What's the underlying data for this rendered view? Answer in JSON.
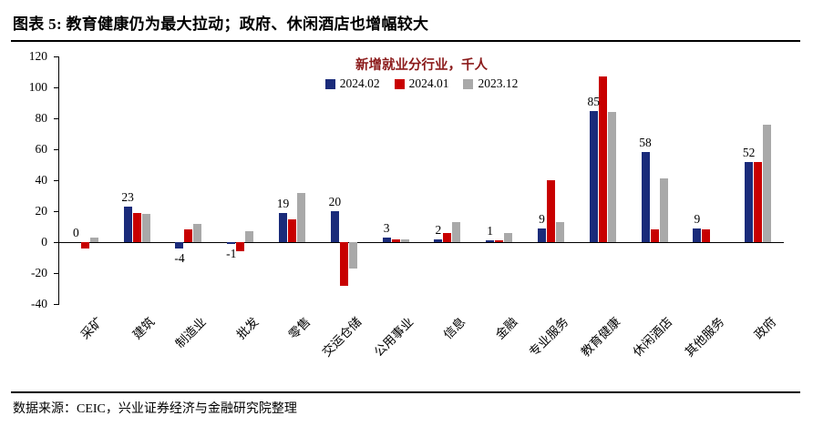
{
  "header": {
    "title": "图表 5: 教育健康仍为最大拉动；政府、休闲酒店也增幅较大"
  },
  "footer": {
    "source": "数据来源：CEIC，兴业证券经济与金融研究院整理"
  },
  "chart_data": {
    "type": "bar",
    "title": "新增就业分行业，千人",
    "title_color": "#8B1A1A",
    "categories": [
      "采矿",
      "建筑",
      "制造业",
      "批发",
      "零售",
      "交运仓储",
      "公用事业",
      "信息",
      "金融",
      "专业服务",
      "教育健康",
      "休闲酒店",
      "其他服务",
      "政府"
    ],
    "series": [
      {
        "name": "2024.02",
        "color": "#1A2B7A",
        "values": [
          0,
          23,
          -4,
          -1,
          19,
          20,
          3,
          2,
          1,
          9,
          85,
          58,
          9,
          52
        ]
      },
      {
        "name": "2024.01",
        "color": "#C80000",
        "values": [
          -4,
          19,
          8,
          -6,
          15,
          -28,
          2,
          6,
          1,
          40,
          107,
          8,
          8,
          52
        ]
      },
      {
        "name": "2023.12",
        "color": "#A9A9A9",
        "values": [
          3,
          18,
          12,
          7,
          32,
          -17,
          2,
          13,
          6,
          13,
          84,
          41,
          0,
          76
        ]
      }
    ],
    "bar_labels": [
      0,
      23,
      -4,
      -1,
      19,
      20,
      3,
      2,
      1,
      9,
      85,
      58,
      9,
      52
    ],
    "ylim": [
      -40,
      120
    ],
    "yticks": [
      120,
      100,
      80,
      60,
      40,
      20,
      0,
      -20,
      -40
    ],
    "grid": false,
    "legend_position": "top-center",
    "xlabel": "",
    "ylabel": ""
  }
}
